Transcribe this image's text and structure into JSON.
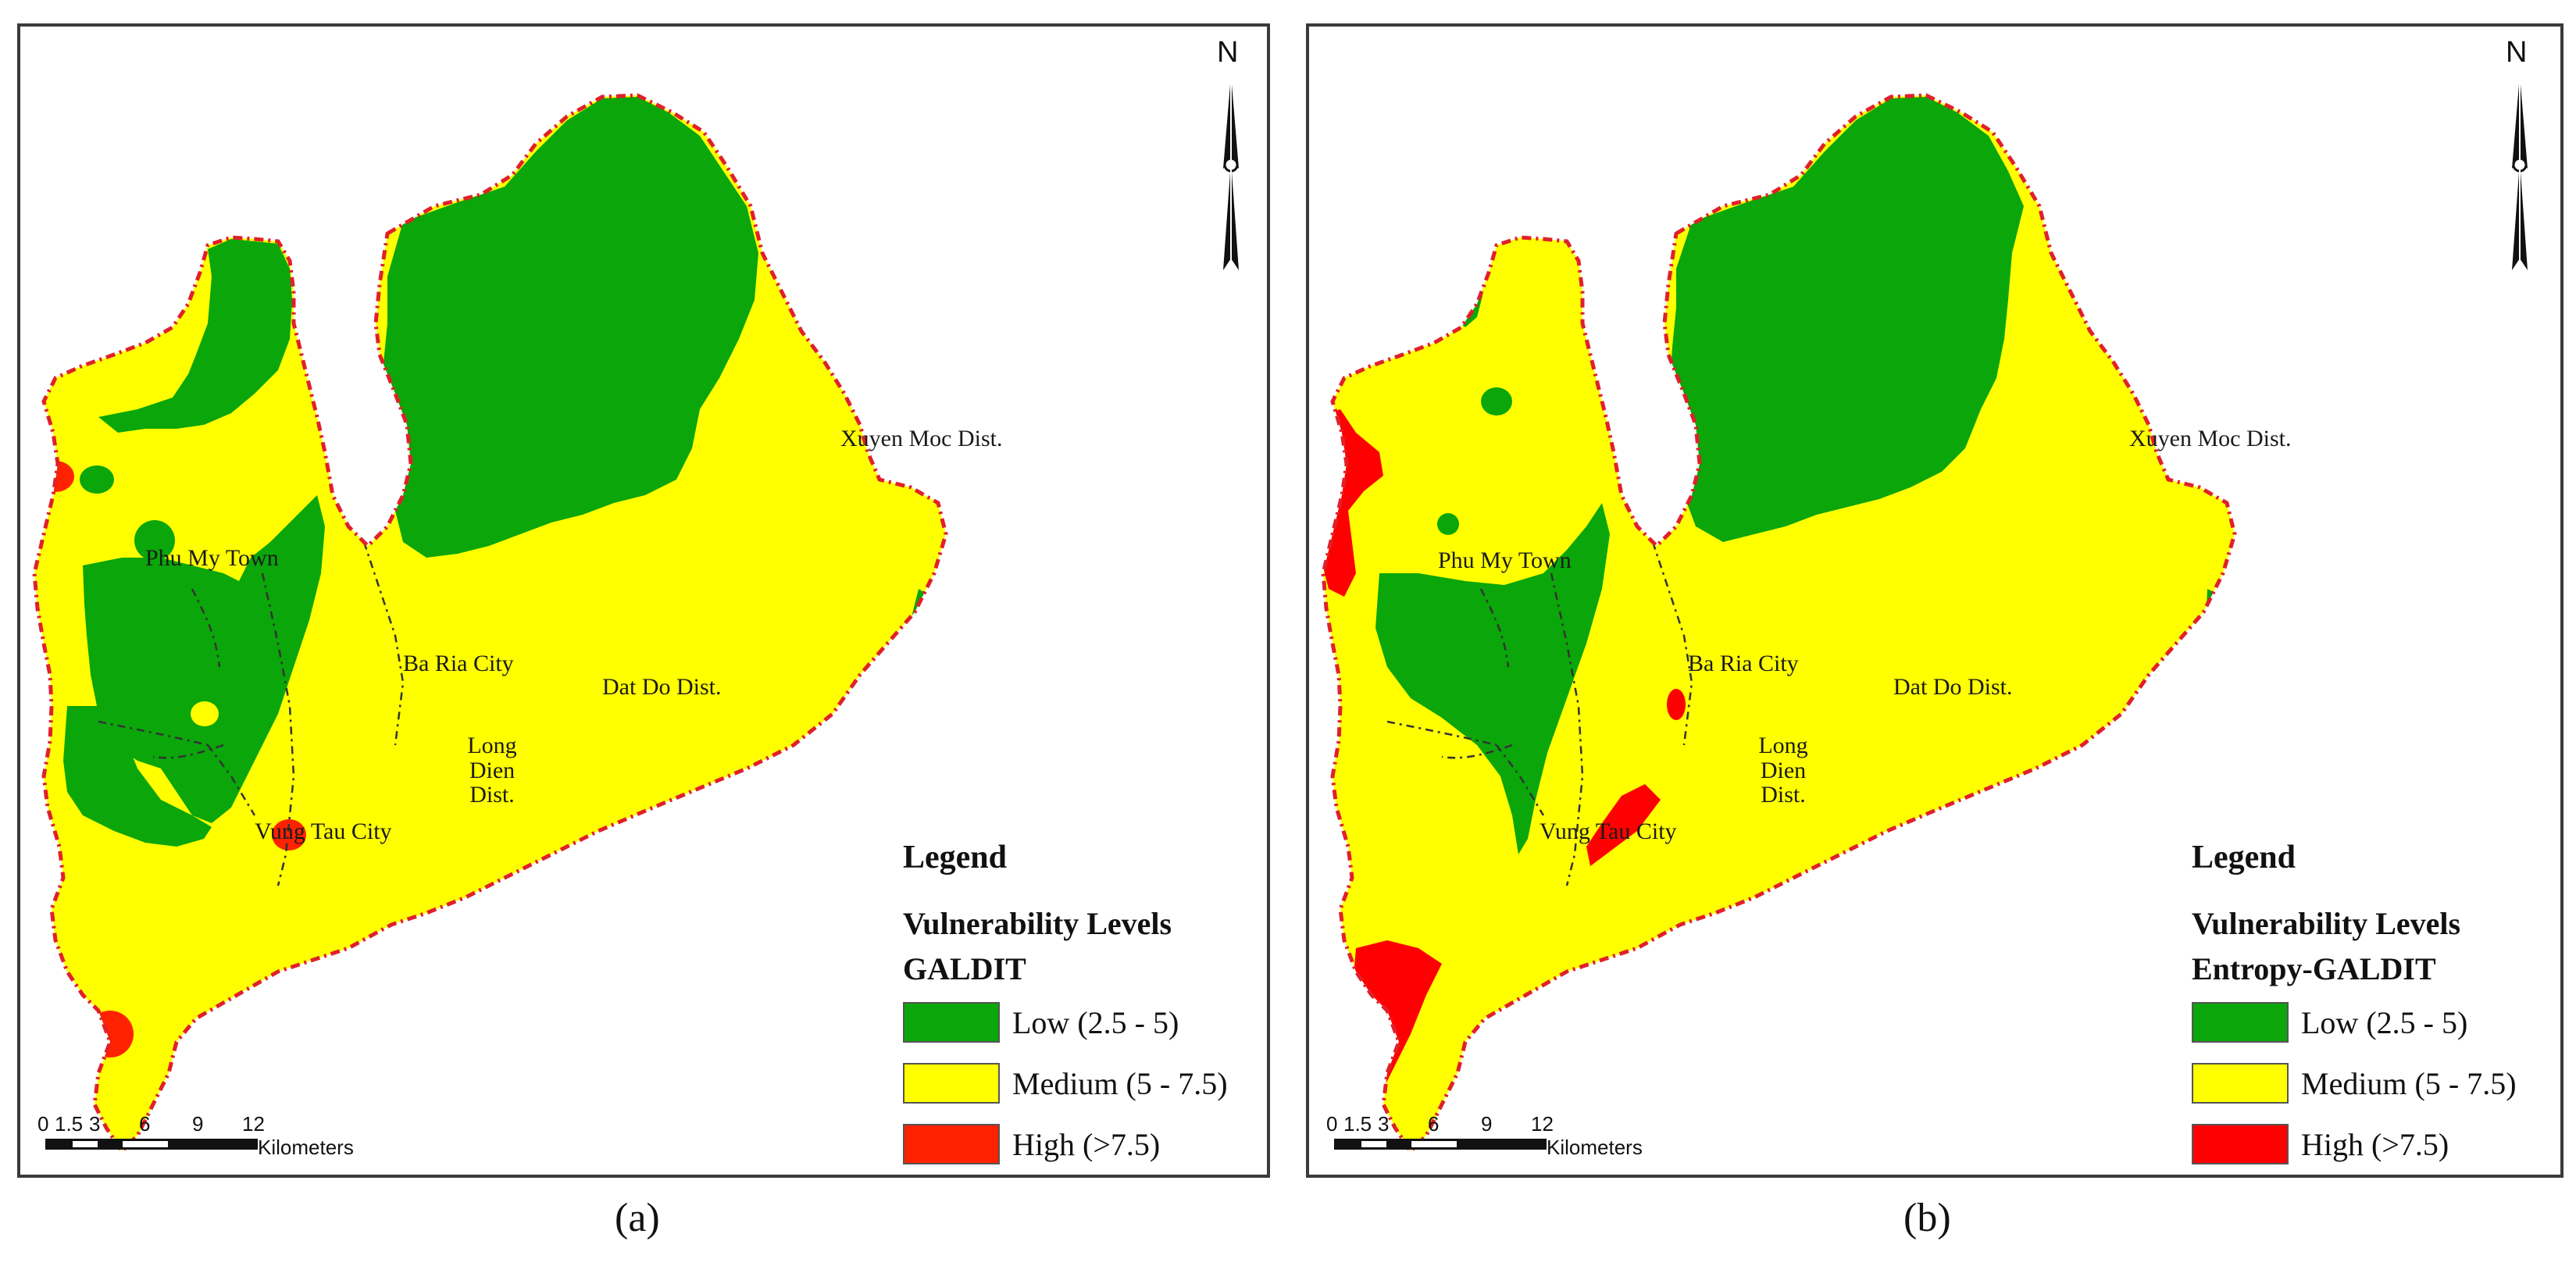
{
  "colors": {
    "low": "#0aa60a",
    "medium": "#ffff00",
    "high_a": "#ff2200",
    "high_b": "#ff0000",
    "boundary": "#e0202a",
    "district_line": "#333333"
  },
  "scale": {
    "ticks": [
      "0",
      "1.5",
      "3",
      "6",
      "9",
      "12"
    ],
    "unit": "Kilometers"
  },
  "north_label": "N",
  "panels": [
    {
      "id": "a",
      "caption": "(a)",
      "legend": {
        "title": "Legend",
        "subtitle1": "Vulnerability Levels",
        "subtitle2": "GALDIT",
        "items": [
          {
            "label": "Low (2.5 - 5)",
            "level": "low"
          },
          {
            "label": "Medium (5 - 7.5)",
            "level": "medium"
          },
          {
            "label": "High (>7.5)",
            "level": "high"
          }
        ]
      },
      "places": {
        "phu_my": "Phu My Town",
        "ba_ria": "Ba Ria City",
        "dat_do": "Dat Do Dist.",
        "xuyen_moc": "Xuyen Moc Dist.",
        "long_dien_1": "Long",
        "long_dien_2": "Dien",
        "long_dien_3": "Dist.",
        "vung_tau": "Vung Tau City"
      }
    },
    {
      "id": "b",
      "caption": "(b)",
      "legend": {
        "title": "Legend",
        "subtitle1": "Vulnerability Levels",
        "subtitle2": "Entropy-GALDIT",
        "items": [
          {
            "label": "Low (2.5 - 5)",
            "level": "low"
          },
          {
            "label": "Medium (5 - 7.5)",
            "level": "medium"
          },
          {
            "label": "High (>7.5)",
            "level": "high"
          }
        ]
      },
      "places": {
        "phu_my": "Phu My Town",
        "ba_ria": "Ba Ria City",
        "dat_do": "Dat Do Dist.",
        "xuyen_moc": "Xuyen Moc Dist.",
        "long_dien_1": "Long",
        "long_dien_2": "Dien",
        "long_dien_3": "Dist.",
        "vung_tau": "Vung Tau City"
      }
    }
  ]
}
